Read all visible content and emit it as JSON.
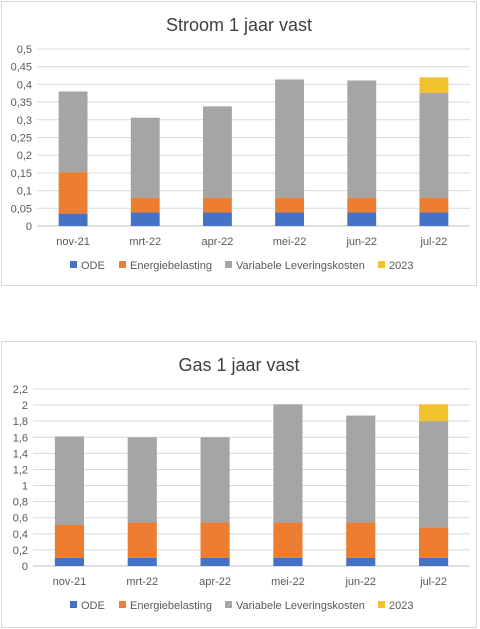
{
  "colors": {
    "ODE": "#4472c4",
    "Energiebelasting": "#ed7d31",
    "Variabele Leveringskosten": "#a5a5a5",
    "2023": "#f2c12e",
    "grid": "#d9d9d9",
    "axis": "#bfbfbf"
  },
  "chart_data": [
    {
      "type": "bar",
      "stacked": true,
      "title": "Stroom 1 jaar vast",
      "categories": [
        "nov-21",
        "mrt-22",
        "apr-22",
        "mei-22",
        "jun-22",
        "jul-22"
      ],
      "ylim": [
        0,
        0.5
      ],
      "yticks": [
        "0",
        "0,05",
        "0,1",
        "0,15",
        "0,2",
        "0,25",
        "0,3",
        "0,35",
        "0,4",
        "0,45",
        "0,5"
      ],
      "grid": true,
      "legend_position": "bottom",
      "series": [
        {
          "name": "ODE",
          "values": [
            0.035,
            0.038,
            0.038,
            0.038,
            0.038,
            0.038
          ]
        },
        {
          "name": "Energiebelasting",
          "values": [
            0.117,
            0.042,
            0.042,
            0.042,
            0.042,
            0.042
          ]
        },
        {
          "name": "Variabele Leveringskosten",
          "values": [
            0.228,
            0.226,
            0.258,
            0.334,
            0.331,
            0.296
          ]
        },
        {
          "name": "2023",
          "values": [
            0,
            0,
            0,
            0,
            0,
            0.044
          ]
        }
      ]
    },
    {
      "type": "bar",
      "stacked": true,
      "title": "Gas 1 jaar vast",
      "categories": [
        "nov-21",
        "mrt-22",
        "apr-22",
        "mei-22",
        "jun-22",
        "jul-22"
      ],
      "ylim": [
        0,
        2.2
      ],
      "yticks": [
        "0",
        "0,2",
        "0,4",
        "0,6",
        "0,8",
        "1",
        "1,2",
        "1,4",
        "1,6",
        "1,8",
        "2",
        "2,2"
      ],
      "grid": true,
      "legend_position": "bottom",
      "series": [
        {
          "name": "ODE",
          "values": [
            0.1,
            0.1,
            0.1,
            0.1,
            0.1,
            0.1
          ]
        },
        {
          "name": "Energiebelasting",
          "values": [
            0.41,
            0.44,
            0.44,
            0.44,
            0.44,
            0.38
          ]
        },
        {
          "name": "Variabele Leveringskosten",
          "values": [
            1.1,
            1.06,
            1.06,
            1.47,
            1.33,
            1.32
          ]
        },
        {
          "name": "2023",
          "values": [
            0,
            0,
            0,
            0,
            0,
            0.21
          ]
        }
      ]
    }
  ]
}
